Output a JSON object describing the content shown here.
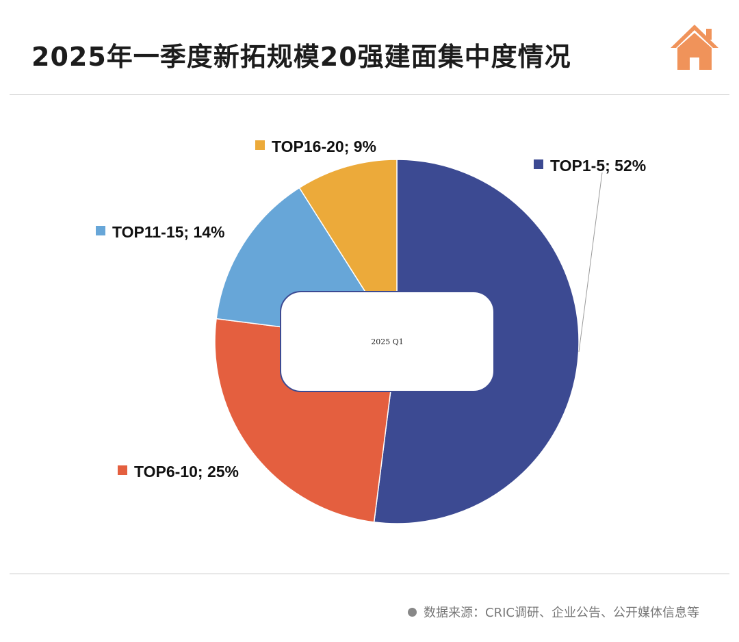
{
  "header": {
    "title": "2025年一季度新拓规模20强建面集中度情况",
    "logo_icon": "house-icon"
  },
  "footer": {
    "source": "数据来源：CRIC调研、企业公告、公开媒体信息等"
  },
  "colors": {
    "top1_5": "#3c4a92",
    "top6_10": "#e45f3f",
    "top11_15": "#67a6d8",
    "top16_20": "#ecaa3a",
    "logo": "#f0935a"
  },
  "chart_data": {
    "type": "pie",
    "style": "donut",
    "center_label": "2025 Q1",
    "legend": "none",
    "categories": [
      "TOP1-5",
      "TOP6-10",
      "TOP11-15",
      "TOP16-20"
    ],
    "values": [
      52,
      25,
      14,
      9
    ],
    "unit": "%",
    "data_labels": [
      "TOP1-5; 52%",
      "TOP6-10; 25%",
      "TOP11-15; 14%",
      "TOP16-20; 9%"
    ]
  }
}
